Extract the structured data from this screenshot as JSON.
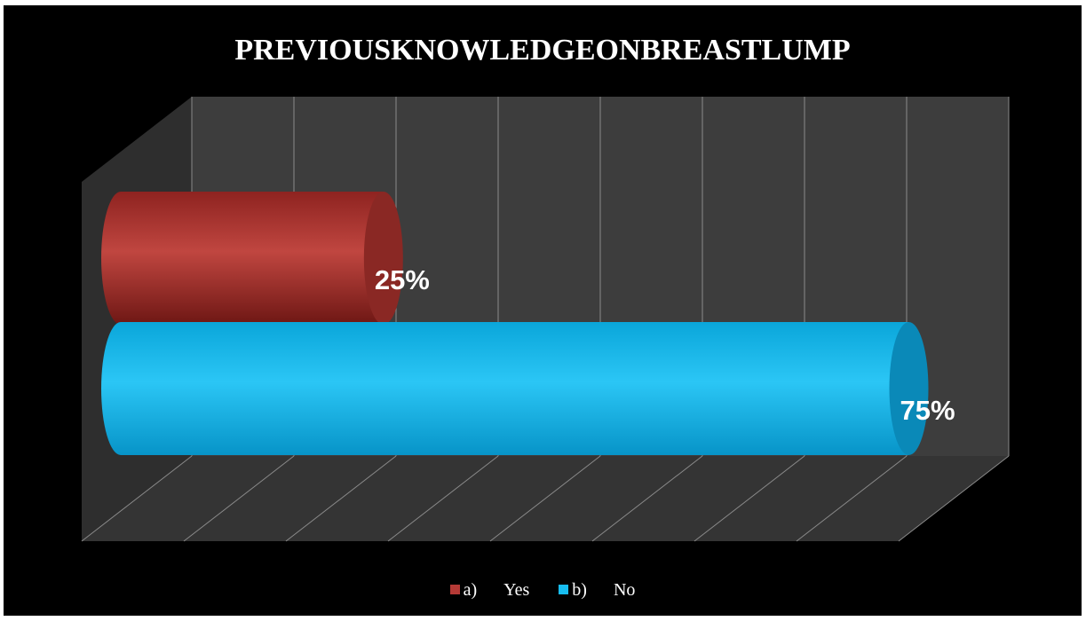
{
  "chart_data": {
    "type": "bar",
    "orientation": "horizontal",
    "style": "3d-cylinder",
    "title": "PREVIOUSKNOWLEDGEONBREASTLUMP",
    "xlim": [
      0,
      0.8
    ],
    "grid": true,
    "legend_position": "bottom",
    "series": [
      {
        "name": "a) Yes",
        "prefix": "a)",
        "label": "Yes",
        "value": 0.25,
        "data_label": "25%",
        "color": "#b53a36"
      },
      {
        "name": "b) No",
        "prefix": "b)",
        "label": "No",
        "value": 0.75,
        "data_label": "75%",
        "color": "#17bdf0"
      }
    ]
  },
  "colors": {
    "background": "#000000",
    "wall": "#3d3d3d",
    "side_wall": "#2e2e2e",
    "floor": "#343434",
    "gridline": "#8a8a8a"
  }
}
